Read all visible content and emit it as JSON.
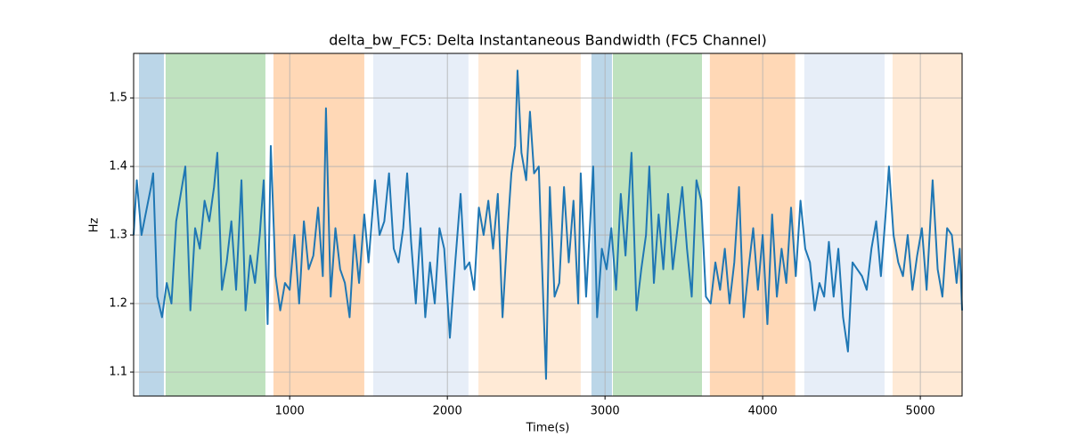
{
  "chart_data": {
    "type": "line",
    "title": "delta_bw_FC5: Delta Instantaneous Bandwidth (FC5 Channel)",
    "x_label": "Time(s)",
    "y_label": "Hz",
    "xlim": [
      10,
      5265
    ],
    "ylim": [
      1.065,
      1.565
    ],
    "xticks": [
      1000,
      2000,
      3000,
      4000,
      5000
    ],
    "yticks": [
      1.1,
      1.2,
      1.3,
      1.4,
      1.5
    ],
    "grid": true,
    "spans": [
      {
        "start": 44,
        "end": 202,
        "color": "#1f77b4",
        "opacity": 0.3
      },
      {
        "start": 213,
        "end": 846,
        "color": "#2ca02c",
        "opacity": 0.3
      },
      {
        "start": 897,
        "end": 1473,
        "color": "#ff7f0e",
        "opacity": 0.3
      },
      {
        "start": 1530,
        "end": 2134,
        "color": "#aec7e8",
        "opacity": 0.3
      },
      {
        "start": 2197,
        "end": 2846,
        "color": "#ffbb78",
        "opacity": 0.3
      },
      {
        "start": 2914,
        "end": 3044,
        "color": "#1f77b4",
        "opacity": 0.3
      },
      {
        "start": 3050,
        "end": 3615,
        "color": "#2ca02c",
        "opacity": 0.3
      },
      {
        "start": 3665,
        "end": 4207,
        "color": "#ff7f0e",
        "opacity": 0.3
      },
      {
        "start": 4264,
        "end": 4773,
        "color": "#aec7e8",
        "opacity": 0.3
      },
      {
        "start": 4824,
        "end": 5265,
        "color": "#ffbb78",
        "opacity": 0.3
      }
    ],
    "series": [
      {
        "name": "delta_bw_FC5",
        "color": "#1f77b4",
        "x": [
          10,
          30,
          60,
          120,
          134,
          160,
          190,
          220,
          250,
          280,
          338,
          370,
          400,
          430,
          460,
          490,
          520,
          541,
          570,
          600,
          630,
          660,
          694,
          720,
          750,
          780,
          810,
          835,
          860,
          880,
          910,
          940,
          970,
          1000,
          1030,
          1060,
          1090,
          1120,
          1150,
          1180,
          1210,
          1230,
          1260,
          1290,
          1320,
          1350,
          1380,
          1410,
          1440,
          1473,
          1500,
          1541,
          1570,
          1600,
          1630,
          1660,
          1690,
          1720,
          1745,
          1770,
          1800,
          1830,
          1860,
          1890,
          1920,
          1950,
          1980,
          2016,
          2050,
          2084,
          2110,
          2140,
          2170,
          2200,
          2230,
          2260,
          2290,
          2320,
          2350,
          2380,
          2406,
          2430,
          2445,
          2470,
          2500,
          2524,
          2550,
          2580,
          2600,
          2626,
          2650,
          2680,
          2710,
          2740,
          2770,
          2800,
          2830,
          2846,
          2880,
          2925,
          2950,
          2980,
          3010,
          3040,
          3070,
          3100,
          3130,
          3168,
          3200,
          3230,
          3260,
          3281,
          3310,
          3340,
          3370,
          3400,
          3430,
          3460,
          3490,
          3520,
          3550,
          3580,
          3610,
          3640,
          3670,
          3700,
          3730,
          3760,
          3790,
          3820,
          3850,
          3880,
          3910,
          3940,
          3970,
          4000,
          4030,
          4060,
          4090,
          4120,
          4150,
          4180,
          4210,
          4240,
          4270,
          4300,
          4330,
          4360,
          4390,
          4420,
          4450,
          4480,
          4510,
          4541,
          4570,
          4600,
          4630,
          4660,
          4690,
          4720,
          4750,
          4780,
          4801,
          4830,
          4860,
          4890,
          4920,
          4950,
          4980,
          5010,
          5040,
          5078,
          5110,
          5140,
          5170,
          5200,
          5230,
          5250,
          5265
        ],
        "values": [
          1.3,
          1.38,
          1.3,
          1.37,
          1.39,
          1.21,
          1.18,
          1.23,
          1.2,
          1.32,
          1.4,
          1.19,
          1.31,
          1.28,
          1.35,
          1.32,
          1.37,
          1.42,
          1.22,
          1.26,
          1.32,
          1.22,
          1.38,
          1.19,
          1.27,
          1.23,
          1.3,
          1.38,
          1.17,
          1.43,
          1.24,
          1.19,
          1.23,
          1.22,
          1.3,
          1.2,
          1.32,
          1.25,
          1.27,
          1.34,
          1.24,
          1.485,
          1.21,
          1.31,
          1.25,
          1.23,
          1.18,
          1.3,
          1.23,
          1.33,
          1.26,
          1.38,
          1.3,
          1.32,
          1.39,
          1.28,
          1.26,
          1.31,
          1.39,
          1.29,
          1.2,
          1.31,
          1.18,
          1.26,
          1.2,
          1.31,
          1.28,
          1.15,
          1.26,
          1.36,
          1.25,
          1.26,
          1.22,
          1.34,
          1.3,
          1.35,
          1.28,
          1.36,
          1.18,
          1.3,
          1.39,
          1.43,
          1.54,
          1.42,
          1.38,
          1.48,
          1.39,
          1.4,
          1.26,
          1.09,
          1.37,
          1.21,
          1.23,
          1.37,
          1.26,
          1.35,
          1.2,
          1.39,
          1.21,
          1.4,
          1.18,
          1.28,
          1.25,
          1.31,
          1.22,
          1.36,
          1.27,
          1.42,
          1.19,
          1.25,
          1.3,
          1.4,
          1.23,
          1.33,
          1.25,
          1.36,
          1.25,
          1.31,
          1.37,
          1.28,
          1.21,
          1.38,
          1.35,
          1.21,
          1.2,
          1.26,
          1.22,
          1.28,
          1.2,
          1.26,
          1.37,
          1.18,
          1.25,
          1.31,
          1.22,
          1.3,
          1.17,
          1.33,
          1.21,
          1.28,
          1.23,
          1.34,
          1.24,
          1.35,
          1.28,
          1.26,
          1.19,
          1.23,
          1.21,
          1.29,
          1.21,
          1.28,
          1.18,
          1.13,
          1.26,
          1.25,
          1.24,
          1.22,
          1.28,
          1.32,
          1.24,
          1.33,
          1.4,
          1.3,
          1.26,
          1.24,
          1.3,
          1.22,
          1.27,
          1.31,
          1.22,
          1.38,
          1.25,
          1.21,
          1.31,
          1.3,
          1.23,
          1.28,
          1.19
        ]
      }
    ]
  }
}
